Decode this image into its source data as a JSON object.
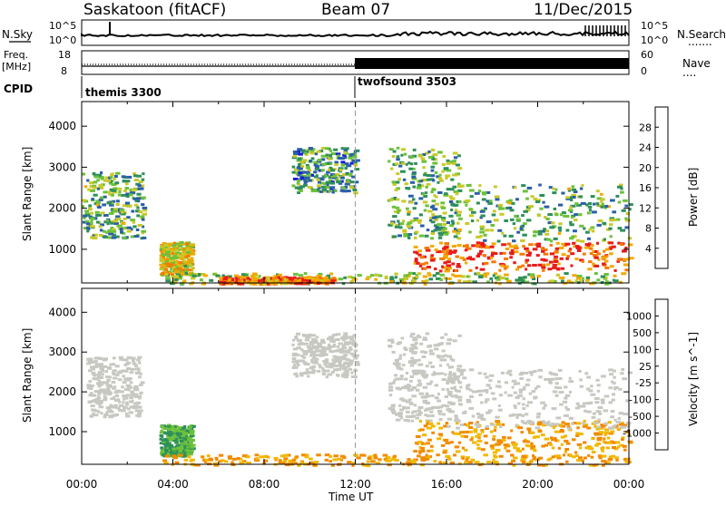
{
  "header": {
    "station": "Saskatoon (fitACF)",
    "beam": "Beam 07",
    "date": "11/Dec/2015"
  },
  "strips": {
    "nsky_label": "N.Sky",
    "nsky_ticks": [
      "10^5",
      "10^0"
    ],
    "nsearch_label": "N.Search",
    "nsearch_ticks": [
      "10^5",
      "10^0"
    ],
    "freq_label_1": "Freq.",
    "freq_label_2": "[MHz]",
    "freq_ticks": [
      "18",
      "8"
    ],
    "nave_label": "Nave",
    "nave_ticks": [
      "60",
      "0"
    ],
    "cpid_label": "CPID",
    "cpid_modes": [
      "themis 3300",
      "twofsound 3503"
    ]
  },
  "x_axis": {
    "title": "Time UT",
    "ticks": [
      "00:00",
      "04:00",
      "08:00",
      "12:00",
      "16:00",
      "20:00",
      "00:00"
    ]
  },
  "colors": {
    "power": [
      "#1b1bd9",
      "#2a5fa8",
      "#2e8f5a",
      "#6cc13a",
      "#c9c92a",
      "#f2a900",
      "#f47a00",
      "#e81a1a"
    ],
    "velocity": [
      "#1b1bd9",
      "#2a5fa8",
      "#2e8f5a",
      "#6cc13a",
      "#c8c8c2",
      "#f2b800",
      "#f28a00",
      "#f25a00",
      "#e81a1a"
    ]
  },
  "chart_data": [
    {
      "type": "heatmap",
      "title": "",
      "xlabel": "Time UT",
      "ylabel": "Slant Range [km]",
      "xlim": [
        0,
        24
      ],
      "ylim": [
        180,
        4600
      ],
      "yticks": [
        "4000",
        "3000",
        "2000",
        "1000"
      ],
      "colorbar": {
        "label": "Power [dB]",
        "ticks": [
          "28",
          "24",
          "20",
          "16",
          "12",
          "8",
          "4"
        ],
        "range": [
          0,
          30
        ]
      },
      "regions": [
        {
          "t": [
            0.0,
            2.7
          ],
          "r": [
            1300,
            2900
          ],
          "v": 12
        },
        {
          "t": [
            3.4,
            4.8
          ],
          "r": [
            400,
            1200
          ],
          "v": 18
        },
        {
          "t": [
            3.5,
            24.0
          ],
          "r": [
            180,
            450
          ],
          "v": 15
        },
        {
          "t": [
            6.0,
            11.0
          ],
          "r": [
            180,
            350
          ],
          "v": 24
        },
        {
          "t": [
            9.2,
            12.0
          ],
          "r": [
            2400,
            3500
          ],
          "v": 10
        },
        {
          "t": [
            13.4,
            16.5
          ],
          "r": [
            1300,
            3500
          ],
          "v": 12
        },
        {
          "t": [
            14.5,
            24.0
          ],
          "r": [
            500,
            1200
          ],
          "v": 26
        },
        {
          "t": [
            16.0,
            24.0
          ],
          "r": [
            1200,
            2600
          ],
          "v": 12
        }
      ]
    },
    {
      "type": "heatmap",
      "title": "",
      "xlabel": "Time UT",
      "ylabel": "Slant Range [km]",
      "xlim": [
        0,
        24
      ],
      "ylim": [
        180,
        4600
      ],
      "yticks": [
        "4000",
        "3000",
        "2000",
        "1000"
      ],
      "colorbar": {
        "label": "Velocity [m s^-1]",
        "ticks": [
          "1000",
          "500",
          "100",
          "25",
          "-25",
          "-100",
          "-500",
          "-1000"
        ]
      },
      "regions": [
        {
          "t": [
            0.2,
            2.6
          ],
          "r": [
            1400,
            2900
          ],
          "v": 0
        },
        {
          "t": [
            3.4,
            4.8
          ],
          "r": [
            400,
            1200
          ],
          "v": 100
        },
        {
          "t": [
            3.5,
            24.0
          ],
          "r": [
            180,
            450
          ],
          "v": -100
        },
        {
          "t": [
            9.2,
            12.0
          ],
          "r": [
            2400,
            3500
          ],
          "v": 0
        },
        {
          "t": [
            13.4,
            16.5
          ],
          "r": [
            1300,
            3500
          ],
          "v": 0
        },
        {
          "t": [
            14.5,
            24.0
          ],
          "r": [
            500,
            1300
          ],
          "v": -100
        },
        {
          "t": [
            16.0,
            24.0
          ],
          "r": [
            1100,
            2600
          ],
          "v": 0
        }
      ]
    }
  ]
}
